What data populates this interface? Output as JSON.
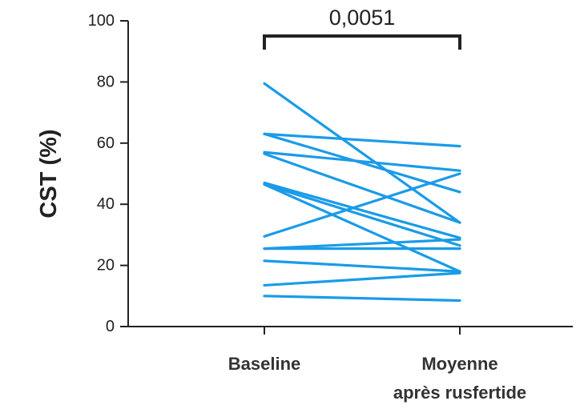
{
  "chart_data": {
    "type": "line",
    "title": "",
    "xlabel": "",
    "ylabel": "CST (%)",
    "ylim": [
      0,
      100
    ],
    "yticks": [
      "0",
      "20",
      "40",
      "60",
      "80",
      "100"
    ],
    "categories": [
      [
        "Baseline"
      ],
      [
        "Moyenne",
        "après rusfertide"
      ]
    ],
    "annotation": {
      "text": "0,0051",
      "type": "significance-bracket"
    },
    "series_color": "#1a9be8",
    "grid": false,
    "legend": "none",
    "series": [
      {
        "values": [
          79.5,
          34.0
        ]
      },
      {
        "values": [
          63.0,
          59.0
        ]
      },
      {
        "values": [
          63.0,
          44.0
        ]
      },
      {
        "values": [
          57.0,
          51.0
        ]
      },
      {
        "values": [
          56.5,
          34.0
        ]
      },
      {
        "values": [
          47.0,
          29.0
        ]
      },
      {
        "values": [
          46.5,
          26.5
        ]
      },
      {
        "values": [
          46.5,
          18.0
        ]
      },
      {
        "values": [
          29.5,
          50.0
        ]
      },
      {
        "values": [
          25.5,
          28.5
        ]
      },
      {
        "values": [
          25.5,
          25.5
        ]
      },
      {
        "values": [
          21.5,
          18.0
        ]
      },
      {
        "values": [
          13.5,
          17.5
        ]
      },
      {
        "values": [
          10.0,
          8.5
        ]
      }
    ]
  }
}
